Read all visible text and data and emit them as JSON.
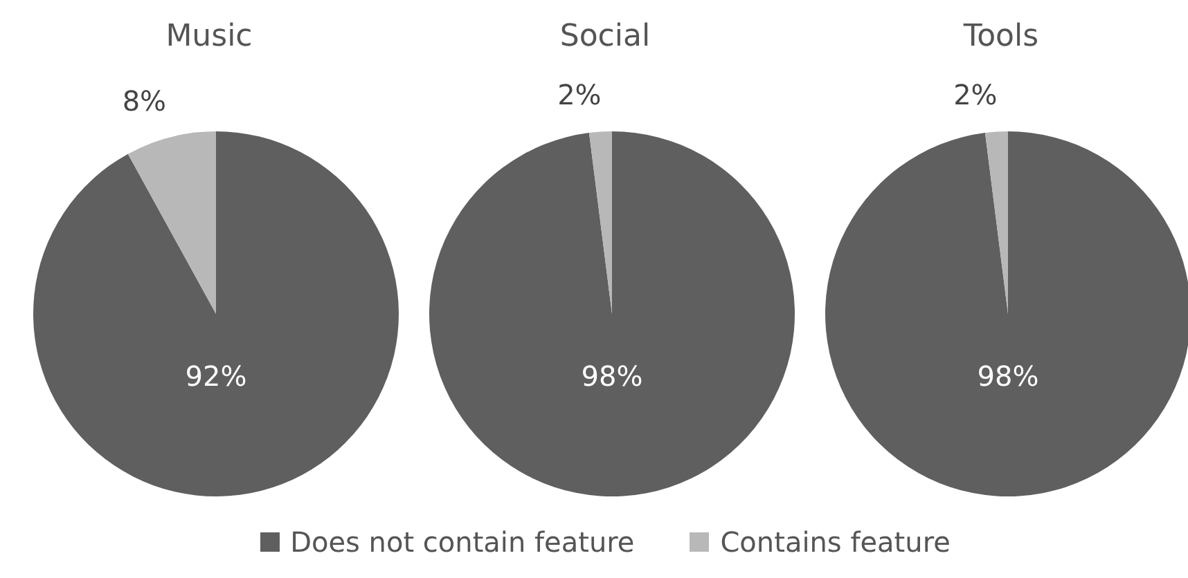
{
  "chart_data": [
    {
      "type": "pie",
      "title": "Music",
      "categories": [
        "Does not contain feature",
        "Contains feature"
      ],
      "values": [
        92,
        8
      ],
      "value_labels": [
        "92%",
        "8%"
      ],
      "colors": [
        "#5f5f5f",
        "#b8b8b8"
      ],
      "legend": "bottom"
    },
    {
      "type": "pie",
      "title": "Social",
      "categories": [
        null,
        null
      ],
      "values": [
        98,
        2
      ],
      "value_labels": [
        "98%",
        "2%"
      ],
      "colors": [
        "#5f5f5f",
        "#b8b8b8"
      ]
    },
    {
      "type": "pie",
      "title": "Tools",
      "categories": [
        null,
        null
      ],
      "values": [
        98,
        2
      ],
      "value_labels": [
        "98%",
        "2%"
      ],
      "colors": [
        "#5f5f5f",
        "#b8b8b8"
      ]
    }
  ]
}
